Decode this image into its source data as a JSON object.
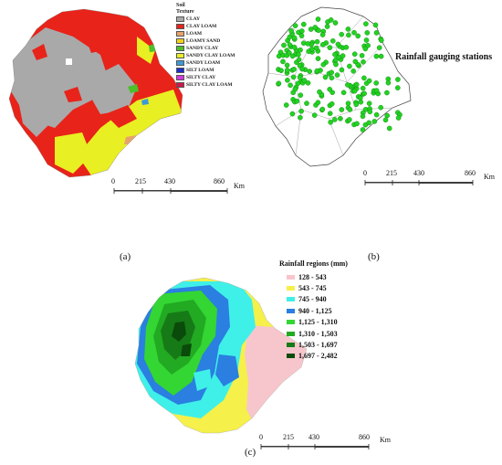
{
  "panel_a": {
    "label": "(a)",
    "legend_title_line1": "Soil",
    "legend_title_line2": "Texture",
    "legend": [
      {
        "label": "CLAY",
        "color": "#a9a9a9"
      },
      {
        "label": "CLAY LOAM",
        "color": "#e8231a"
      },
      {
        "label": "LOAM",
        "color": "#e8a26b"
      },
      {
        "label": "LOAMY SAND",
        "color": "#f2d21c"
      },
      {
        "label": "SANDY CLAY",
        "color": "#4cbf2b"
      },
      {
        "label": "SANDY CLAY LOAM",
        "color": "#e8ef22"
      },
      {
        "label": "SANDY LOAM",
        "color": "#3c9ad8"
      },
      {
        "label": "SILT LOAM",
        "color": "#1c2fc8"
      },
      {
        "label": "SILTY CLAY",
        "color": "#d43adf"
      },
      {
        "label": "SILTY CLAY LOAM",
        "color": "#cc1a4a"
      }
    ],
    "scale": {
      "ticks": [
        "0",
        "215",
        "430",
        "860"
      ],
      "unit": "Km"
    }
  },
  "panel_b": {
    "label": "(b)",
    "stations_label": "Rainfall gauging stations",
    "station_color": "#22d322",
    "scale": {
      "ticks": [
        "0",
        "215",
        "430",
        "860"
      ],
      "unit": "Km"
    }
  },
  "panel_c": {
    "label": "(c)",
    "legend_title": "Rainfall regions (mm)",
    "legend": [
      {
        "label": "128 - 543",
        "color": "#f7c6cc"
      },
      {
        "label": "543 - 745",
        "color": "#f5f04a"
      },
      {
        "label": "745 - 940",
        "color": "#3ff0e8"
      },
      {
        "label": "940 - 1,125",
        "color": "#2a7fe0"
      },
      {
        "label": "1,125 - 1,310",
        "color": "#33d633"
      },
      {
        "label": "1,310 - 1,503",
        "color": "#22aa22"
      },
      {
        "label": "1,503 - 1,697",
        "color": "#167a16"
      },
      {
        "label": "1,697 - 2,482",
        "color": "#0a4a0a"
      }
    ],
    "scale": {
      "ticks": [
        "0",
        "215",
        "430",
        "860"
      ],
      "unit": "Km"
    }
  }
}
